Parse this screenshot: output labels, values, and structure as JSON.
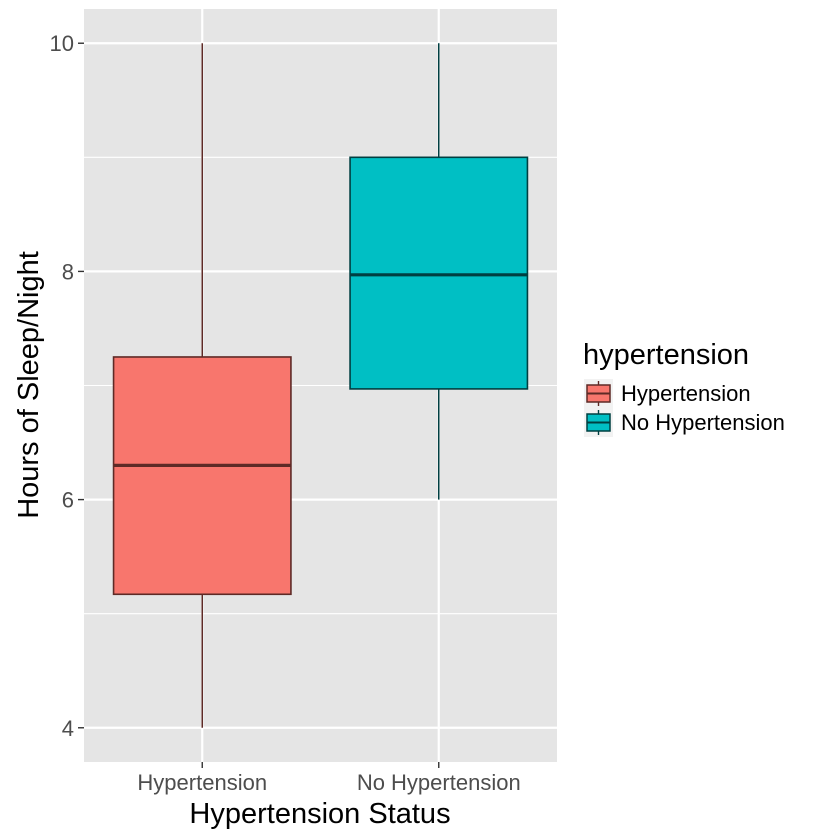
{
  "chart_data": {
    "type": "boxplot",
    "title": "",
    "xlabel": "Hypertension Status",
    "ylabel": "Hours of Sleep/Night",
    "ylim": [
      3.7,
      10.3
    ],
    "yticks": [
      4,
      6,
      8,
      10
    ],
    "yticks_minor": [
      5,
      7,
      9
    ],
    "grid": true,
    "legend": {
      "title": "hypertension",
      "position": "right"
    },
    "categories": [
      "Hypertension",
      "No Hypertension"
    ],
    "series": [
      {
        "name": "Hypertension",
        "min": 4,
        "q1": 5.17,
        "median": 6.3,
        "q3": 7.25,
        "max": 10,
        "fill": "#F8766D",
        "line": "#5e2a26"
      },
      {
        "name": "No Hypertension",
        "min": 6,
        "q1": 6.97,
        "median": 7.97,
        "q3": 9.0,
        "max": 10,
        "fill": "#00BFC4",
        "line": "#003f41"
      }
    ],
    "panel_bg": "#e5e5e5"
  }
}
